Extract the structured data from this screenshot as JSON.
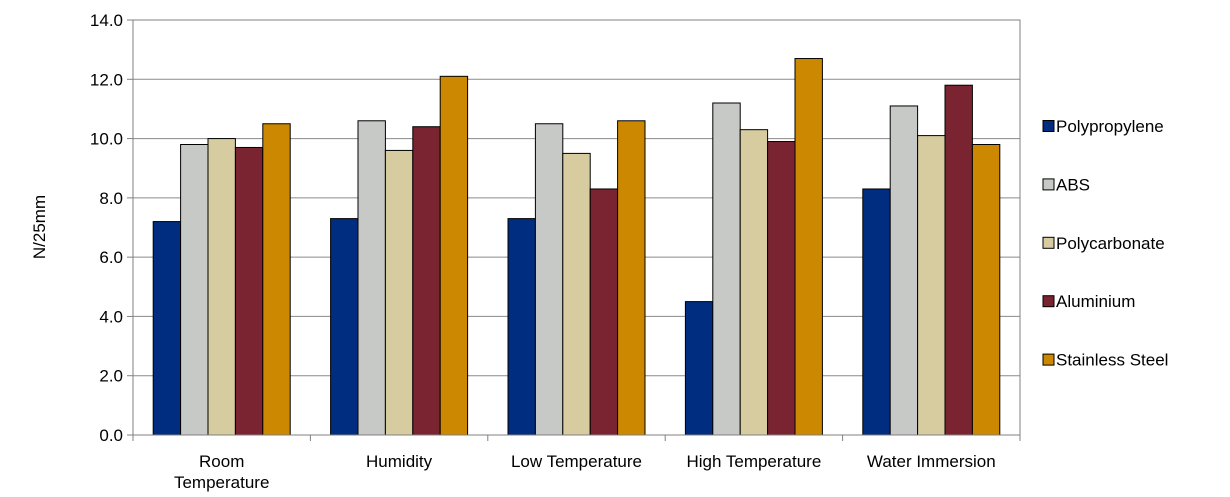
{
  "chart_data": {
    "type": "bar",
    "title": "",
    "xlabel": "",
    "ylabel": "N/25mm",
    "ylim": [
      0,
      14
    ],
    "yticks": [
      "0.0",
      "2.0",
      "4.0",
      "6.0",
      "8.0",
      "10.0",
      "12.0",
      "14.0"
    ],
    "grid": true,
    "legend_position": "right",
    "categories": [
      [
        "Room",
        "Temperature"
      ],
      [
        "Humidity"
      ],
      [
        "Low Temperature"
      ],
      [
        "High Temperature"
      ],
      [
        "Water Immersion"
      ]
    ],
    "series": [
      {
        "name": "Polypropylene",
        "color": "#002D7F",
        "values": [
          7.2,
          7.3,
          7.3,
          4.5,
          8.3
        ]
      },
      {
        "name": "ABS",
        "color": "#C7C9C7",
        "values": [
          9.8,
          10.6,
          10.5,
          11.2,
          11.1
        ]
      },
      {
        "name": "Polycarbonate",
        "color": "#D6CCA0",
        "values": [
          10.0,
          9.6,
          9.5,
          10.3,
          10.1
        ]
      },
      {
        "name": "Aluminium",
        "color": "#7B2431",
        "values": [
          9.7,
          10.4,
          8.3,
          9.9,
          11.8
        ]
      },
      {
        "name": "Stainless Steel",
        "color": "#CC8800",
        "values": [
          10.5,
          12.1,
          10.6,
          12.7,
          9.8
        ]
      }
    ]
  }
}
